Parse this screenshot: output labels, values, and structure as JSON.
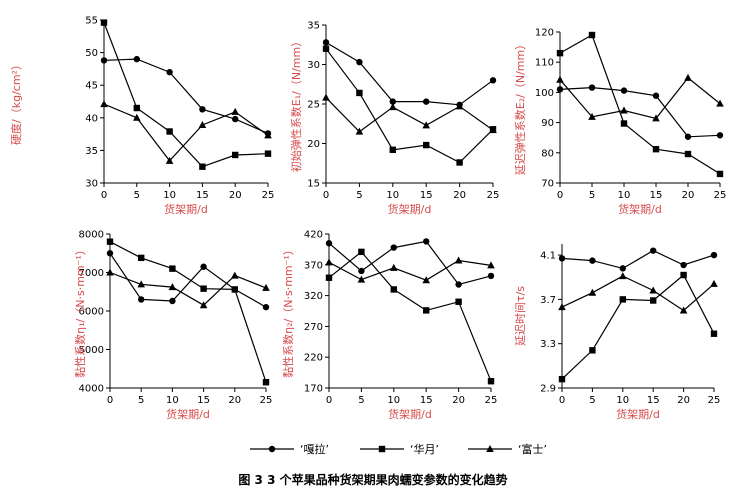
{
  "caption": "图 3   3 个苹果品种货架期果肉蠕变参数的变化趋势",
  "legend": [
    {
      "name": "‘嘎拉’",
      "marker": "circle"
    },
    {
      "name": "‘华月’",
      "marker": "square"
    },
    {
      "name": "‘富士’",
      "marker": "triangle"
    }
  ],
  "chart_data": [
    {
      "type": "line",
      "xlabel": "货架期/d",
      "ylabel": "硬度/（kg/cm²）",
      "x": [
        0,
        5,
        10,
        15,
        20,
        25
      ],
      "ylim": [
        30,
        55
      ],
      "yticks": [
        30,
        35,
        40,
        45,
        50,
        55
      ],
      "series": [
        {
          "name": "‘嘎拉’",
          "values": [
            48.8,
            49.0,
            47.0,
            41.3,
            39.8,
            37.6
          ]
        },
        {
          "name": "‘华月’",
          "values": [
            54.6,
            41.5,
            37.9,
            32.5,
            34.3,
            34.5
          ]
        },
        {
          "name": "‘富士’",
          "values": [
            42.1,
            40.0,
            33.4,
            38.9,
            40.9,
            37.3
          ]
        }
      ]
    },
    {
      "type": "line",
      "xlabel": "货架期/d",
      "ylabel": "初始弹性系数E₁/（N/mm）",
      "x": [
        0,
        5,
        10,
        15,
        20,
        25
      ],
      "ylim": [
        15,
        35
      ],
      "yticks": [
        15,
        20,
        25,
        30,
        35
      ],
      "series": [
        {
          "name": "‘嘎拉’",
          "values": [
            32.8,
            30.3,
            25.3,
            25.3,
            24.9,
            28.0
          ]
        },
        {
          "name": "‘华月’",
          "values": [
            32.0,
            26.4,
            19.2,
            19.8,
            17.6,
            21.8
          ]
        },
        {
          "name": "‘富士’",
          "values": [
            25.8,
            21.5,
            24.6,
            22.3,
            24.7,
            21.7
          ]
        }
      ]
    },
    {
      "type": "line",
      "xlabel": "货架期/d",
      "ylabel": "延迟弹性系数E₂/（N/mm）",
      "x": [
        0,
        5,
        10,
        15,
        20,
        25
      ],
      "ylim": [
        70,
        120
      ],
      "yticks": [
        70,
        80,
        90,
        100,
        110,
        120
      ],
      "series": [
        {
          "name": "‘嘎拉’",
          "values": [
            101.0,
            101.6,
            100.6,
            98.9,
            85.3,
            85.8
          ]
        },
        {
          "name": "‘华月’",
          "values": [
            113.0,
            119.0,
            89.7,
            81.2,
            79.6,
            73.0
          ]
        },
        {
          "name": "‘富士’",
          "values": [
            104.2,
            91.9,
            94.0,
            91.4,
            104.8,
            96.3
          ]
        }
      ]
    },
    {
      "type": "line",
      "xlabel": "货架期/d",
      "ylabel": "黏性系数η₁/（N·s·mm⁻¹）",
      "x": [
        0,
        5,
        10,
        15,
        20,
        25
      ],
      "ylim": [
        4000,
        8000
      ],
      "yticks": [
        4000,
        5000,
        6000,
        7000,
        8000
      ],
      "series": [
        {
          "name": "‘嘎拉’",
          "values": [
            7500,
            6300,
            6260,
            7150,
            6560,
            6100
          ]
        },
        {
          "name": "‘华月’",
          "values": [
            7800,
            7380,
            7100,
            6580,
            6560,
            4150
          ]
        },
        {
          "name": "‘富士’",
          "values": [
            7000,
            6690,
            6620,
            6150,
            6920,
            6600
          ]
        }
      ]
    },
    {
      "type": "line",
      "xlabel": "货架期/d",
      "ylabel": "黏性系数η₂/（N·s·mm⁻¹）",
      "x": [
        0,
        5,
        10,
        15,
        20,
        25
      ],
      "ylim": [
        170,
        420
      ],
      "yticks": [
        170,
        220,
        270,
        320,
        370,
        420
      ],
      "series": [
        {
          "name": "‘嘎拉’",
          "values": [
            405,
            360,
            398,
            408,
            338,
            352
          ]
        },
        {
          "name": "‘华月’",
          "values": [
            349,
            391,
            330,
            296,
            310,
            181
          ]
        },
        {
          "name": "‘富士’",
          "values": [
            374,
            346,
            365,
            345,
            377,
            369
          ]
        }
      ]
    },
    {
      "type": "line",
      "xlabel": "货架期/d",
      "ylabel": "延迟时间τ/s",
      "x": [
        0,
        5,
        10,
        15,
        20,
        25
      ],
      "ylim": [
        2.9,
        4.2
      ],
      "yticks": [
        2.9,
        3.3,
        3.7,
        4.1
      ],
      "series": [
        {
          "name": "‘嘎拉’",
          "values": [
            4.07,
            4.05,
            3.98,
            4.14,
            4.01,
            4.1
          ]
        },
        {
          "name": "‘华月’",
          "values": [
            2.98,
            3.24,
            3.7,
            3.69,
            3.92,
            3.39
          ]
        },
        {
          "name": "‘富士’",
          "values": [
            3.63,
            3.76,
            3.91,
            3.78,
            3.6,
            3.84
          ]
        }
      ]
    }
  ]
}
